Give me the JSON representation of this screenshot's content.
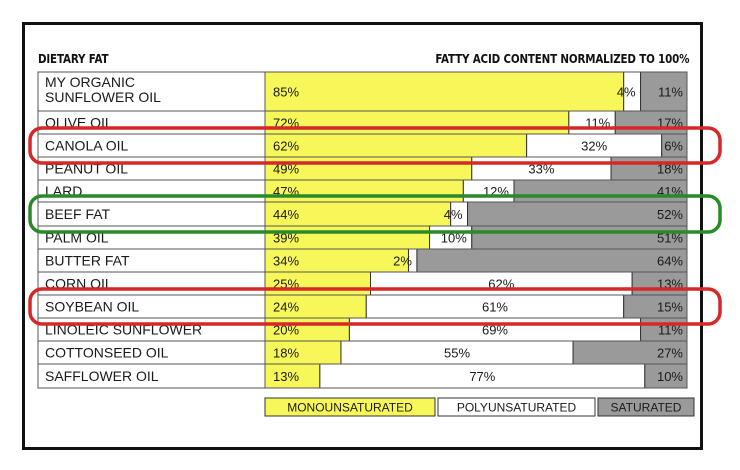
{
  "chart_data": {
    "type": "bar",
    "stacked": true,
    "orientation": "horizontal",
    "normalized_to": 100,
    "title": "DIETARY FAT",
    "subtitle": "FATTY ACID CONTENT NORMALIZED TO 100%",
    "categories": [
      "MY ORGANIC SUNFLOWER OIL",
      "OLIVE OIL",
      "CANOLA OIL",
      "PEANUT OIL",
      "LARD",
      "BEEF FAT",
      "PALM OIL",
      "BUTTER FAT",
      "CORN OIL",
      "SOYBEAN OIL",
      "LINOLEIC SUNFLOWER",
      "COTTONSEED OIL",
      "SAFFLOWER OIL"
    ],
    "series": [
      {
        "name": "MONOUNSATURATED",
        "color": "#f7f75a",
        "values": [
          85,
          72,
          62,
          49,
          47,
          44,
          39,
          34,
          25,
          24,
          20,
          18,
          13
        ]
      },
      {
        "name": "POLYUNSATURATED",
        "color": "#ffffff",
        "values": [
          4,
          11,
          32,
          33,
          12,
          4,
          10,
          2,
          62,
          61,
          69,
          55,
          77
        ]
      },
      {
        "name": "SATURATED",
        "color": "#9a9a9a",
        "values": [
          11,
          17,
          6,
          18,
          41,
          52,
          51,
          64,
          13,
          15,
          11,
          27,
          10
        ]
      }
    ],
    "highlights": [
      {
        "category": "CANOLA OIL",
        "color": "#d62828"
      },
      {
        "category": "BEEF FAT",
        "color": "#2a8a2a"
      },
      {
        "category": "SOYBEAN OIL",
        "color": "#d62828"
      }
    ]
  }
}
